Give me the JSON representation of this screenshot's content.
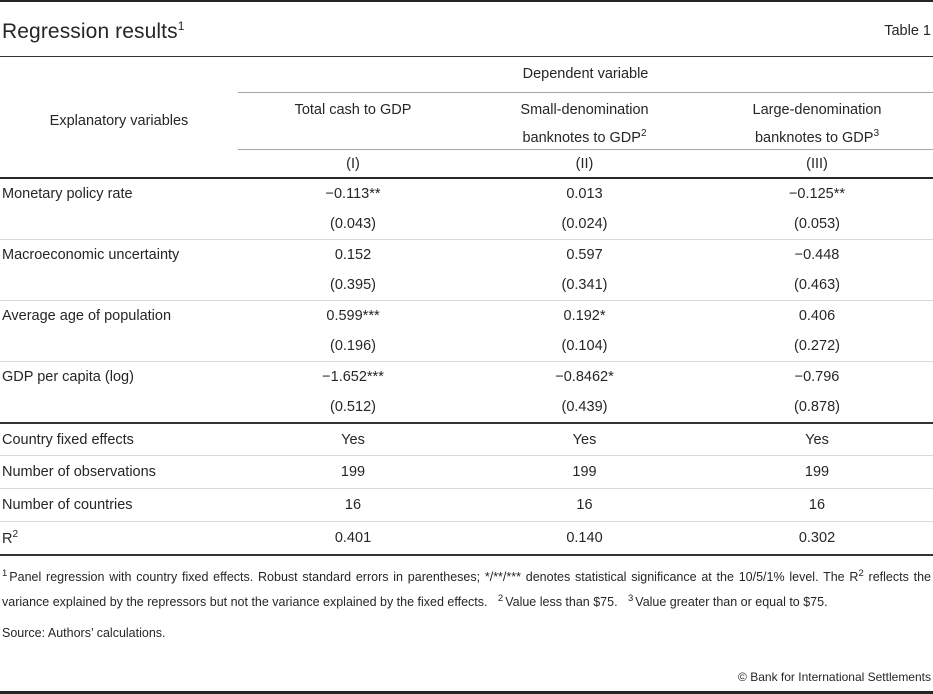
{
  "page": {
    "title": "Regression results",
    "title_sup": "1",
    "table_label": "Table 1",
    "source": "Source: Authors’ calculations.",
    "copyright": "© Bank for International Settlements"
  },
  "table": {
    "dependent_variable_header": "Dependent variable",
    "explanatory_header": "Explanatory variables",
    "columns": [
      {
        "line1": "Total cash to GDP",
        "line2": "",
        "sup": "",
        "numeral": "(I)"
      },
      {
        "line1": "Small-denomination",
        "line2": "banknotes to GDP",
        "sup": "2",
        "numeral": "(II)"
      },
      {
        "line1": "Large-denomination",
        "line2": "banknotes to GDP",
        "sup": "3",
        "numeral": "(III)"
      }
    ],
    "coef_rows": [
      {
        "label": "Monetary policy rate",
        "values": [
          "−0.113**",
          "0.013",
          "−0.125**"
        ],
        "se": [
          "(0.043)",
          "(0.024)",
          "(0.053)"
        ]
      },
      {
        "label": "Macroeconomic uncertainty",
        "values": [
          "0.152",
          "0.597",
          "−0.448"
        ],
        "se": [
          "(0.395)",
          "(0.341)",
          "(0.463)"
        ]
      },
      {
        "label": "Average age of population",
        "values": [
          "0.599***",
          "0.192*",
          "0.406"
        ],
        "se": [
          "(0.196)",
          "(0.104)",
          "(0.272)"
        ]
      },
      {
        "label": "GDP per capita (log)",
        "values": [
          "−1.652***",
          "−0.8462*",
          "−0.796"
        ],
        "se": [
          "(0.512)",
          "(0.439)",
          "(0.878)"
        ]
      }
    ],
    "stat_rows": [
      {
        "label": "Country fixed effects",
        "label_sup": "",
        "values": [
          "Yes",
          "Yes",
          "Yes"
        ]
      },
      {
        "label": "Number of observations",
        "label_sup": "",
        "values": [
          "199",
          "199",
          "199"
        ]
      },
      {
        "label": "Number of countries",
        "label_sup": "",
        "values": [
          "16",
          "16",
          "16"
        ]
      },
      {
        "label": "R",
        "label_sup": "2",
        "values": [
          "0.401",
          "0.140",
          "0.302"
        ]
      }
    ]
  },
  "footnotes": {
    "segments": [
      {
        "t": "sup",
        "v": "1"
      },
      {
        "t": "text",
        "v": "Panel regression with country fixed effects. Robust standard errors in parentheses; */**/*** denotes statistical significance at the 10/5/1% level. The R"
      },
      {
        "t": "supin",
        "v": "2"
      },
      {
        "t": "text",
        "v": " reflects the variance explained by the repressors but not the variance explained by the fixed effects.   "
      },
      {
        "t": "sup",
        "v": "2"
      },
      {
        "t": "text",
        "v": "Value less than $75.   "
      },
      {
        "t": "sup",
        "v": "3"
      },
      {
        "t": "text",
        "v": "Value greater than or equal to $75."
      }
    ]
  },
  "colors": {
    "text": "#262626",
    "rule_dark": "#333333",
    "rule_gray": "#a6a6a6",
    "rule_light": "#d9d9d9"
  }
}
